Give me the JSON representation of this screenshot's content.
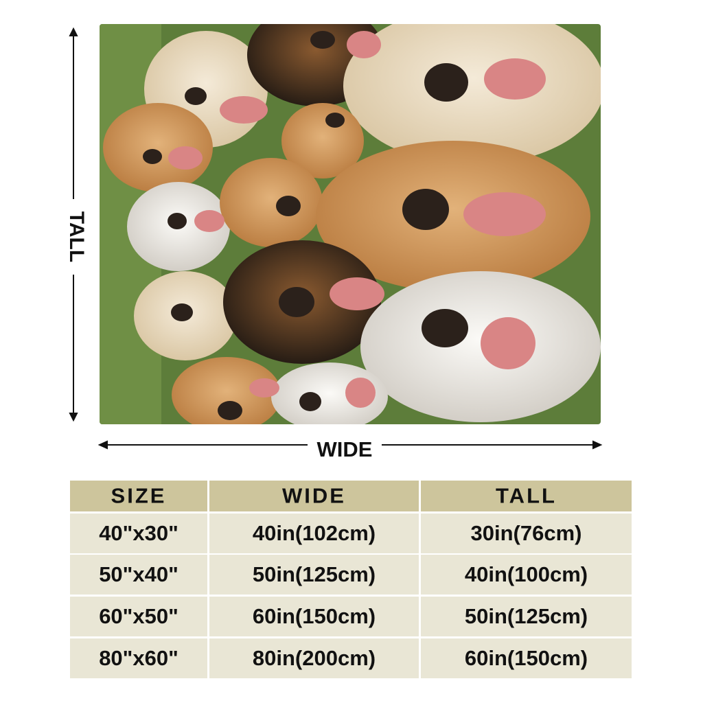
{
  "dimensions": {
    "tall": "TALL",
    "wide": "WIDE"
  },
  "table": {
    "header": [
      "SIZE",
      "WIDE",
      "TALL"
    ],
    "rows": [
      [
        "40\"x30\"",
        "40in(102cm)",
        "30in(76cm)"
      ],
      [
        "50\"x40\"",
        "50in(125cm)",
        "40in(100cm)"
      ],
      [
        "60\"x50\"",
        "60in(150cm)",
        "50in(125cm)"
      ],
      [
        "80\"x60\"",
        "80in(200cm)",
        "60in(150cm)"
      ]
    ]
  }
}
